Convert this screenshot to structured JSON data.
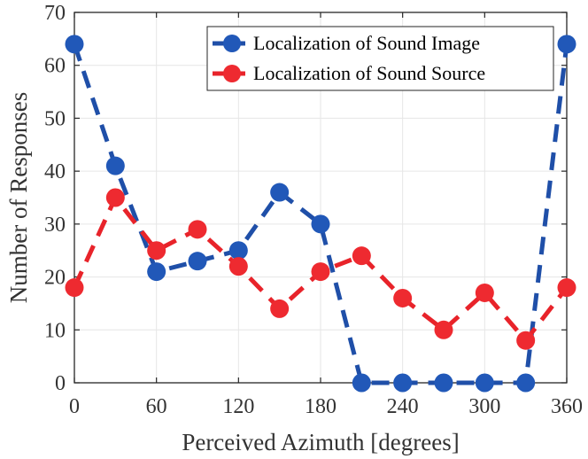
{
  "chart_data": {
    "type": "line",
    "xlabel": "Perceived Azimuth [degrees]",
    "ylabel": "Number of Responses",
    "xlim": [
      0,
      360
    ],
    "ylim": [
      0,
      70
    ],
    "xticks": [
      0,
      60,
      120,
      180,
      240,
      300,
      360
    ],
    "yticks": [
      0,
      10,
      20,
      30,
      40,
      50,
      60,
      70
    ],
    "x": [
      0,
      30,
      60,
      90,
      120,
      150,
      180,
      210,
      240,
      270,
      300,
      330,
      360
    ],
    "grid": true,
    "legend_position": "top-right",
    "series": [
      {
        "name": "Localization of Sound Image",
        "color": "#1f4fa8",
        "marker_color": "#2158b8",
        "line_style": "dashed",
        "values": [
          64,
          41,
          21,
          23,
          25,
          36,
          30,
          0,
          0,
          0,
          0,
          0,
          64
        ]
      },
      {
        "name": "Localization of Sound Source",
        "color": "#e8232a",
        "marker_color": "#ee2a30",
        "line_style": "dashed",
        "values": [
          18,
          35,
          25,
          29,
          22,
          14,
          21,
          24,
          16,
          10,
          17,
          8,
          18
        ]
      }
    ]
  }
}
